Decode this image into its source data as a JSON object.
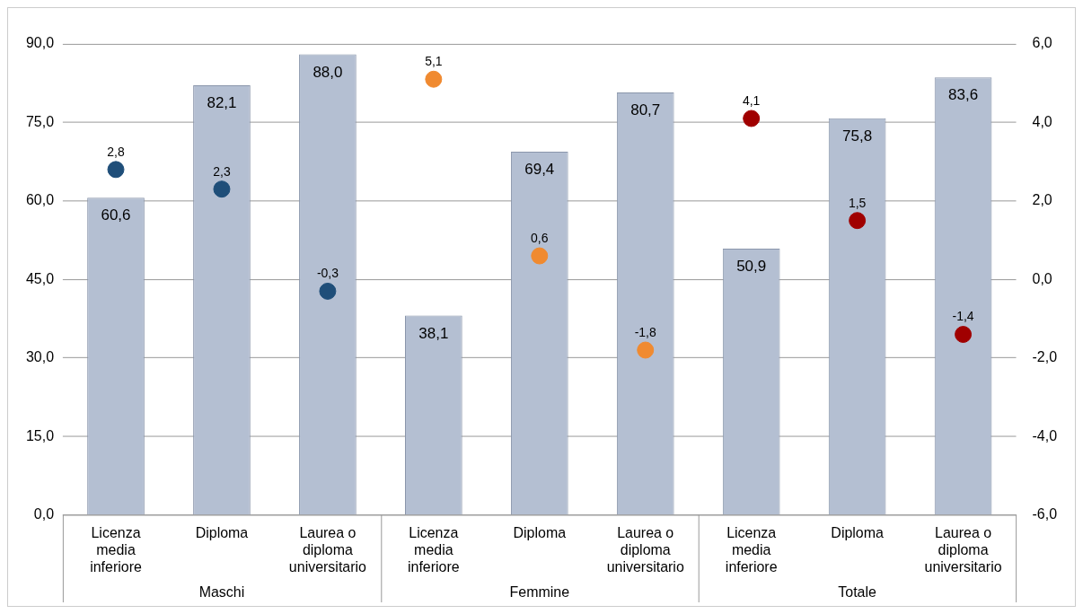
{
  "chart_data": {
    "type": "bar",
    "categories": [
      "Licenza media inferiore",
      "Diploma",
      "Laurea o diploma universitario",
      "Licenza media inferiore",
      "Diploma",
      "Laurea o diploma universitario",
      "Licenza media inferiore",
      "Diploma",
      "Laurea o diploma universitario"
    ],
    "series": [
      {
        "color": "#b4bfd2",
        "values": [
          60.6,
          82.1,
          88.0,
          38.1,
          69.4,
          80.7,
          50.9,
          75.8,
          83.6
        ],
        "value_labels": [
          "60,6",
          "82,1",
          "88,0",
          "38,1",
          "69,4",
          "80,7",
          "50,9",
          "75,8",
          "83,6"
        ]
      },
      {
        "type": "scatter",
        "axis": "y2",
        "colors": [
          "#1f4e79",
          "#1f4e79",
          "#1f4e79",
          "#f08a30",
          "#f08a30",
          "#f08a30",
          "#a00000",
          "#a00000",
          "#a00000"
        ],
        "values": [
          2.8,
          2.3,
          -0.3,
          5.1,
          0.6,
          -1.8,
          4.1,
          1.5,
          -1.4
        ],
        "value_labels": [
          "2,8",
          "2,3",
          "-0,3",
          "5,1",
          "0,6",
          "-1,8",
          "4,1",
          "1,5",
          "-1,4"
        ]
      }
    ],
    "ylim": [
      0,
      90
    ],
    "yticks": [
      {
        "value": 0,
        "label": "0,0"
      },
      {
        "value": 15,
        "label": "15,0"
      },
      {
        "value": 30,
        "label": "30,0"
      },
      {
        "value": 45,
        "label": "45,0"
      },
      {
        "value": 60,
        "label": "60,0"
      },
      {
        "value": 75,
        "label": "75,0"
      },
      {
        "value": 90,
        "label": "90,0"
      }
    ],
    "y2lim": [
      -6,
      6
    ],
    "y2ticks": [
      {
        "value": -6,
        "label": "-6,0"
      },
      {
        "value": -4,
        "label": "-4,0"
      },
      {
        "value": -2,
        "label": "-2,0"
      },
      {
        "value": 0,
        "label": "0,0"
      },
      {
        "value": 2,
        "label": "2,0"
      },
      {
        "value": 4,
        "label": "4,0"
      },
      {
        "value": 6,
        "label": "6,0"
      }
    ],
    "grid": "y",
    "legend": false,
    "marker": "circle",
    "annotations": [
      "Maschi",
      "Femmine",
      "Totale"
    ]
  }
}
